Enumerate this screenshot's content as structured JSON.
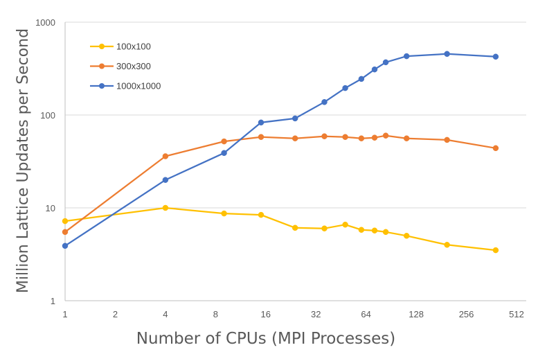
{
  "chart_data": {
    "type": "line",
    "title": "",
    "xlabel": "Number of CPUs (MPI Processes)",
    "ylabel": "Million Lattice Updates per Second",
    "x_scale": "log2",
    "y_scale": "log10",
    "xlim": [
      1,
      512
    ],
    "ylim": [
      1,
      1000
    ],
    "x_ticks": [
      1,
      2,
      4,
      8,
      16,
      32,
      64,
      128,
      256,
      512
    ],
    "x_tick_labels": [
      "1",
      "2",
      "4",
      "8",
      "16",
      "32",
      "64",
      "128",
      "256",
      "512"
    ],
    "y_ticks": [
      1,
      10,
      100,
      1000
    ],
    "y_tick_labels": [
      "1",
      "10",
      "100",
      "1000"
    ],
    "grid": "horizontal",
    "legend_position": "top-left",
    "series": [
      {
        "name": "100x100",
        "color": "#FFC000",
        "x": [
          1,
          4,
          9,
          15,
          24,
          36,
          48,
          60,
          72,
          84,
          112,
          196,
          384
        ],
        "y": [
          7.2,
          10.0,
          8.7,
          8.4,
          6.1,
          6.0,
          6.6,
          5.8,
          5.7,
          5.5,
          5.0,
          4.0,
          3.5
        ]
      },
      {
        "name": "300x300",
        "color": "#ED7D31",
        "x": [
          1,
          4,
          9,
          15,
          24,
          36,
          48,
          60,
          72,
          84,
          112,
          196,
          384
        ],
        "y": [
          5.5,
          36,
          52,
          58,
          56,
          59,
          58,
          56,
          57,
          60,
          56,
          54,
          44
        ]
      },
      {
        "name": "1000x1000",
        "color": "#4472C4",
        "x": [
          1,
          4,
          9,
          15,
          24,
          36,
          48,
          60,
          72,
          84,
          112,
          196,
          384
        ],
        "y": [
          3.9,
          20,
          39,
          83,
          92,
          138,
          195,
          245,
          310,
          370,
          430,
          455,
          425
        ]
      }
    ]
  }
}
